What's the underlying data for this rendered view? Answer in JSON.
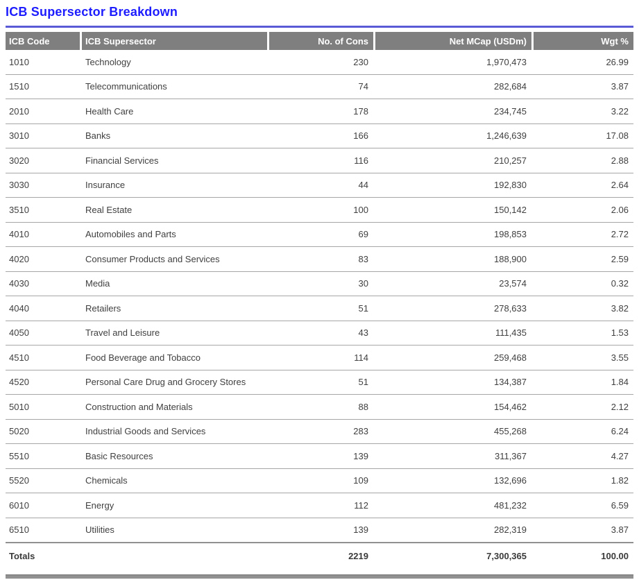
{
  "title": "ICB Supersector Breakdown",
  "colors": {
    "title_text": "#1c1cff",
    "title_rule": "#5a5ad6",
    "header_bg": "#7f7f7f",
    "header_text": "#ffffff",
    "body_text": "#3f3f3f",
    "row_separator": "#a6a6a6",
    "bottom_bar": "#919191"
  },
  "table": {
    "columns": [
      {
        "key": "code",
        "label": "ICB Code",
        "align": "left"
      },
      {
        "key": "name",
        "label": "ICB Supersector",
        "align": "left"
      },
      {
        "key": "cons",
        "label": "No. of Cons",
        "align": "right"
      },
      {
        "key": "mcap",
        "label": "Net MCap (USDm)",
        "align": "right"
      },
      {
        "key": "wgt",
        "label": "Wgt %",
        "align": "right"
      }
    ],
    "rows": [
      [
        "1010",
        "Technology",
        "230",
        "1,970,473",
        "26.99"
      ],
      [
        "1510",
        "Telecommunications",
        "74",
        "282,684",
        "3.87"
      ],
      [
        "2010",
        "Health Care",
        "178",
        "234,745",
        "3.22"
      ],
      [
        "3010",
        "Banks",
        "166",
        "1,246,639",
        "17.08"
      ],
      [
        "3020",
        "Financial Services",
        "116",
        "210,257",
        "2.88"
      ],
      [
        "3030",
        "Insurance",
        "44",
        "192,830",
        "2.64"
      ],
      [
        "3510",
        "Real Estate",
        "100",
        "150,142",
        "2.06"
      ],
      [
        "4010",
        "Automobiles and Parts",
        "69",
        "198,853",
        "2.72"
      ],
      [
        "4020",
        "Consumer Products and Services",
        "83",
        "188,900",
        "2.59"
      ],
      [
        "4030",
        "Media",
        "30",
        "23,574",
        "0.32"
      ],
      [
        "4040",
        "Retailers",
        "51",
        "278,633",
        "3.82"
      ],
      [
        "4050",
        "Travel and Leisure",
        "43",
        "111,435",
        "1.53"
      ],
      [
        "4510",
        "Food Beverage and Tobacco",
        "114",
        "259,468",
        "3.55"
      ],
      [
        "4520",
        "Personal Care Drug and Grocery Stores",
        "51",
        "134,387",
        "1.84"
      ],
      [
        "5010",
        "Construction and Materials",
        "88",
        "154,462",
        "2.12"
      ],
      [
        "5020",
        "Industrial Goods and Services",
        "283",
        "455,268",
        "6.24"
      ],
      [
        "5510",
        "Basic Resources",
        "139",
        "311,367",
        "4.27"
      ],
      [
        "5520",
        "Chemicals",
        "109",
        "132,696",
        "1.82"
      ],
      [
        "6010",
        "Energy",
        "112",
        "481,232",
        "6.59"
      ],
      [
        "6510",
        "Utilities",
        "139",
        "282,319",
        "3.87"
      ]
    ],
    "totals": {
      "label": "Totals",
      "cons": "2219",
      "mcap": "7,300,365",
      "wgt": "100.00"
    }
  }
}
